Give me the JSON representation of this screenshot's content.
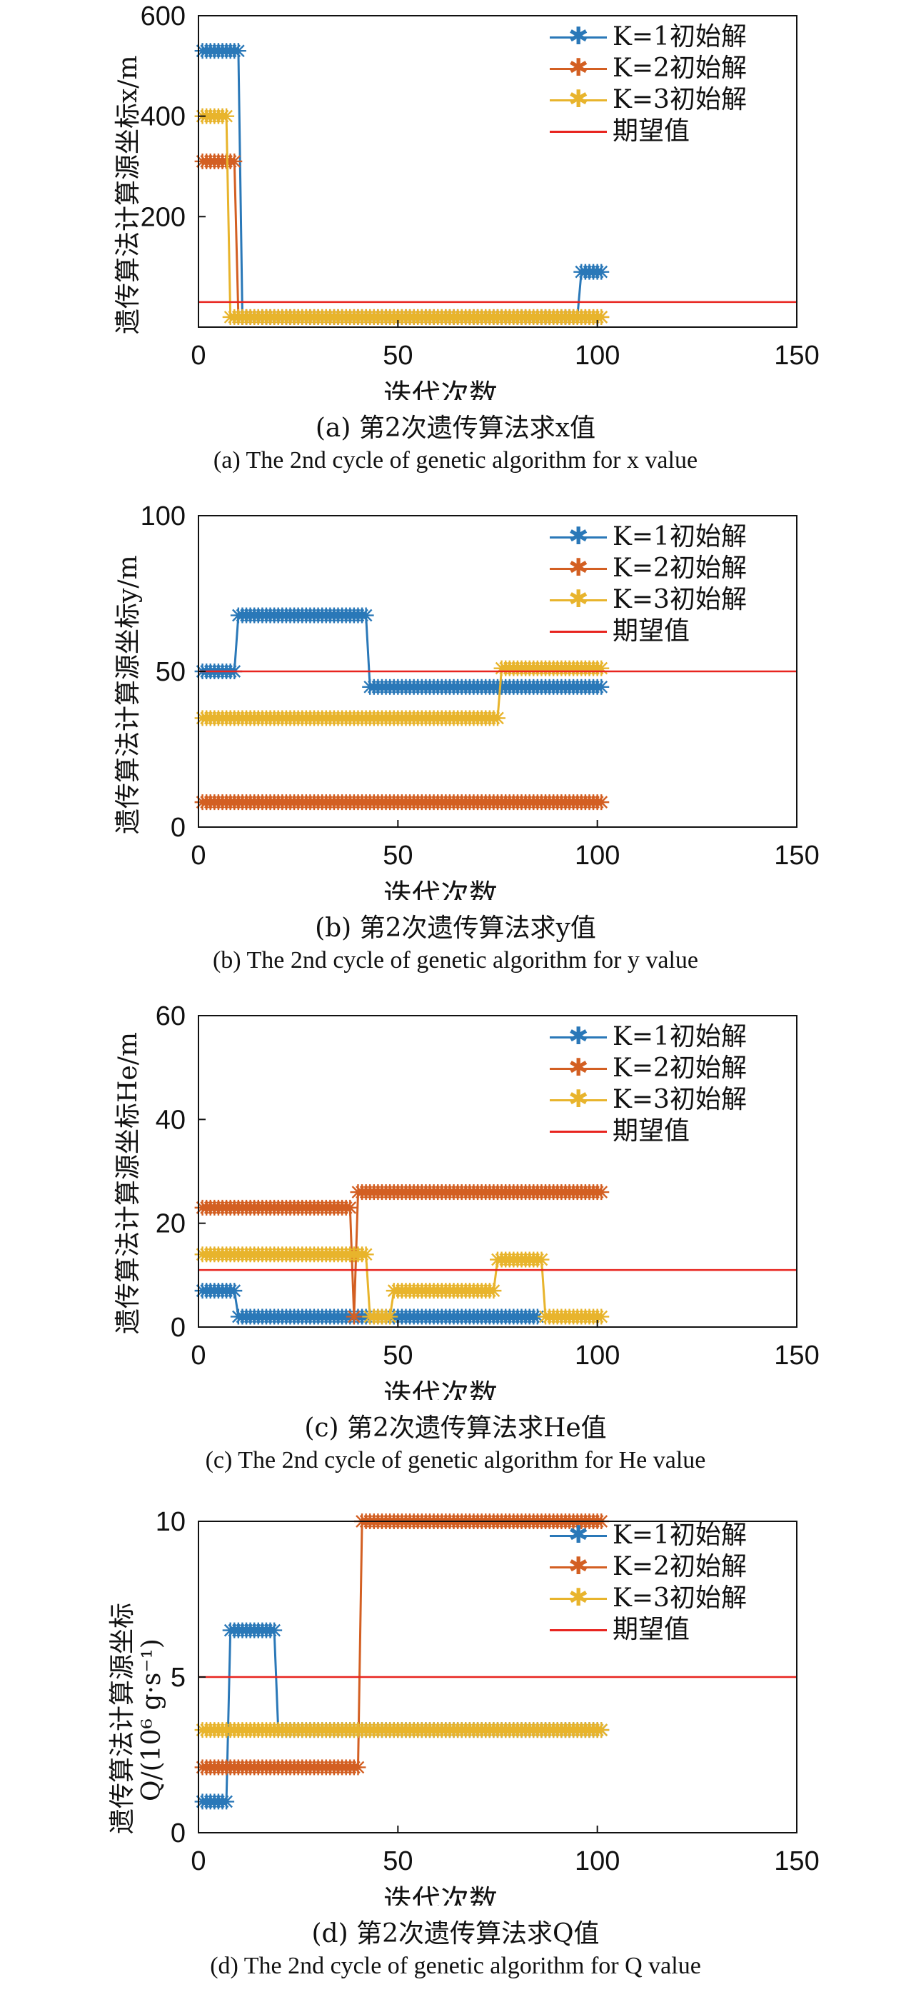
{
  "chart_data": [
    {
      "id": "a",
      "type": "line",
      "ylabel": "遗传算法计算源坐标x/m",
      "xlabel": "迭代次数",
      "xlim": [
        0,
        150
      ],
      "ylim": [
        -20,
        600
      ],
      "xticks": [
        0,
        50,
        100,
        150
      ],
      "yticks": [
        200,
        400,
        600
      ],
      "caption_cn": "(a) 第2次遗传算法求x值",
      "caption_en": "(a) The 2nd cycle of genetic algorithm for x value",
      "legend": [
        "K=1初始解",
        "K=2初始解",
        "K=3初始解",
        "期望值"
      ],
      "expected": 30,
      "series": [
        {
          "name": "K=1初始解",
          "color": "#2a78b8",
          "segments": [
            [
              1,
              10,
              530
            ],
            [
              11,
              95,
              0
            ],
            [
              96,
              101,
              90
            ]
          ]
        },
        {
          "name": "K=2初始解",
          "color": "#d35f22",
          "segments": [
            [
              1,
              9,
              310
            ],
            [
              10,
              101,
              0
            ]
          ]
        },
        {
          "name": "K=3初始解",
          "color": "#e8b42c",
          "segments": [
            [
              1,
              7,
              400
            ],
            [
              8,
              101,
              0
            ]
          ]
        }
      ]
    },
    {
      "id": "b",
      "type": "line",
      "ylabel": "遗传算法计算源坐标y/m",
      "xlabel": "迭代次数",
      "xlim": [
        0,
        150
      ],
      "ylim": [
        0,
        100
      ],
      "xticks": [
        0,
        50,
        100,
        150
      ],
      "yticks": [
        0,
        50,
        100
      ],
      "caption_cn": "(b) 第2次遗传算法求y值",
      "caption_en": "(b) The 2nd cycle of genetic algorithm for y value",
      "legend": [
        "K=1初始解",
        "K=2初始解",
        "K=3初始解",
        "期望值"
      ],
      "expected": 50,
      "series": [
        {
          "name": "K=1初始解",
          "color": "#2a78b8",
          "segments": [
            [
              1,
              9,
              50
            ],
            [
              10,
              42,
              68
            ],
            [
              43,
              101,
              45
            ]
          ]
        },
        {
          "name": "K=2初始解",
          "color": "#d35f22",
          "segments": [
            [
              1,
              101,
              8
            ]
          ]
        },
        {
          "name": "K=3初始解",
          "color": "#e8b42c",
          "segments": [
            [
              1,
              75,
              35
            ],
            [
              76,
              101,
              51
            ]
          ]
        }
      ]
    },
    {
      "id": "c",
      "type": "line",
      "ylabel": "遗传算法计算源坐标He/m",
      "xlabel": "迭代次数",
      "xlim": [
        0,
        150
      ],
      "ylim": [
        0,
        60
      ],
      "xticks": [
        0,
        50,
        100,
        150
      ],
      "yticks": [
        0,
        20,
        40,
        60
      ],
      "caption_cn": "(c) 第2次遗传算法求He值",
      "caption_en": "(c) The 2nd cycle of genetic algorithm for He value",
      "legend": [
        "K=1初始解",
        "K=2初始解",
        "K=3初始解",
        "期望值"
      ],
      "expected": 11,
      "series": [
        {
          "name": "K=1初始解",
          "color": "#2a78b8",
          "segments": [
            [
              1,
              9,
              7
            ],
            [
              10,
              39,
              2
            ],
            [
              40,
              48,
              2
            ],
            [
              49,
              85,
              2
            ]
          ]
        },
        {
          "name": "K=2初始解",
          "color": "#d35f22",
          "segments": [
            [
              1,
              38,
              23
            ],
            [
              39,
              39,
              2
            ],
            [
              40,
              101,
              26
            ]
          ]
        },
        {
          "name": "K=3初始解",
          "color": "#e8b42c",
          "segments": [
            [
              1,
              42,
              14
            ],
            [
              43,
              48,
              2
            ],
            [
              49,
              74,
              7
            ],
            [
              75,
              86,
              13
            ],
            [
              87,
              101,
              2
            ]
          ]
        }
      ]
    },
    {
      "id": "d",
      "type": "line",
      "ylabel": "遗传算法计算源坐标",
      "ylabel2": "Q/(10⁶ g·s⁻¹)",
      "xlabel": "迭代次数",
      "xlim": [
        0,
        150
      ],
      "ylim": [
        0,
        10
      ],
      "xticks": [
        0,
        50,
        100,
        150
      ],
      "yticks": [
        0,
        5,
        10
      ],
      "caption_cn": "(d) 第2次遗传算法求Q值",
      "caption_en": "(d) The 2nd cycle of genetic algorithm for Q value",
      "legend": [
        "K=1初始解",
        "K=2初始解",
        "K=3初始解",
        "期望值"
      ],
      "expected": 5,
      "series": [
        {
          "name": "K=1初始解",
          "color": "#2a78b8",
          "segments": [
            [
              1,
              7,
              1
            ],
            [
              8,
              19,
              6.5
            ],
            [
              20,
              101,
              3.3
            ]
          ]
        },
        {
          "name": "K=2初始解",
          "color": "#d35f22",
          "segments": [
            [
              1,
              40,
              2.1
            ],
            [
              41,
              101,
              10
            ]
          ]
        },
        {
          "name": "K=3初始解",
          "color": "#e8b42c",
          "segments": [
            [
              1,
              101,
              3.3
            ]
          ]
        }
      ]
    }
  ],
  "expected_color": "#e8241f"
}
